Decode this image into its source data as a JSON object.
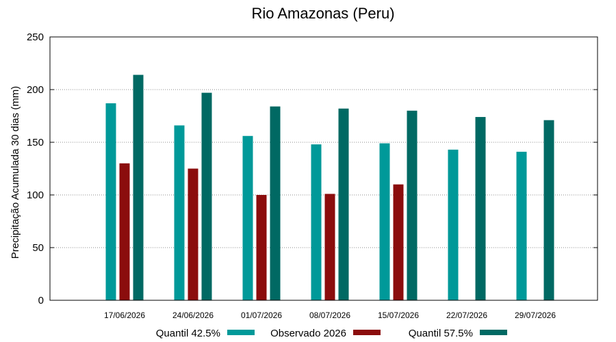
{
  "chart_data": {
    "type": "bar",
    "title": "Rio Amazonas (Peru)",
    "xlabel": "",
    "ylabel": "Precipitação Acumulada 30 dias (mm)",
    "ylim": [
      0,
      250
    ],
    "yticks": [
      0,
      50,
      100,
      150,
      200,
      250
    ],
    "grid": true,
    "legend_position": "bottom",
    "categories": [
      "17/06/2026",
      "24/06/2026",
      "01/07/2026",
      "08/07/2026",
      "15/07/2026",
      "22/07/2026",
      "29/07/2026"
    ],
    "series": [
      {
        "name": "Quantil 42.5%",
        "color": "#009999",
        "values": [
          187,
          166,
          156,
          148,
          149,
          143,
          141
        ]
      },
      {
        "name": "Observado 2026",
        "color": "#8b0d0d",
        "values": [
          130,
          125,
          100,
          101,
          110,
          null,
          null
        ]
      },
      {
        "name": "Quantil 57.5%",
        "color": "#006963",
        "values": [
          214,
          197,
          184,
          182,
          180,
          174,
          171
        ]
      }
    ]
  }
}
